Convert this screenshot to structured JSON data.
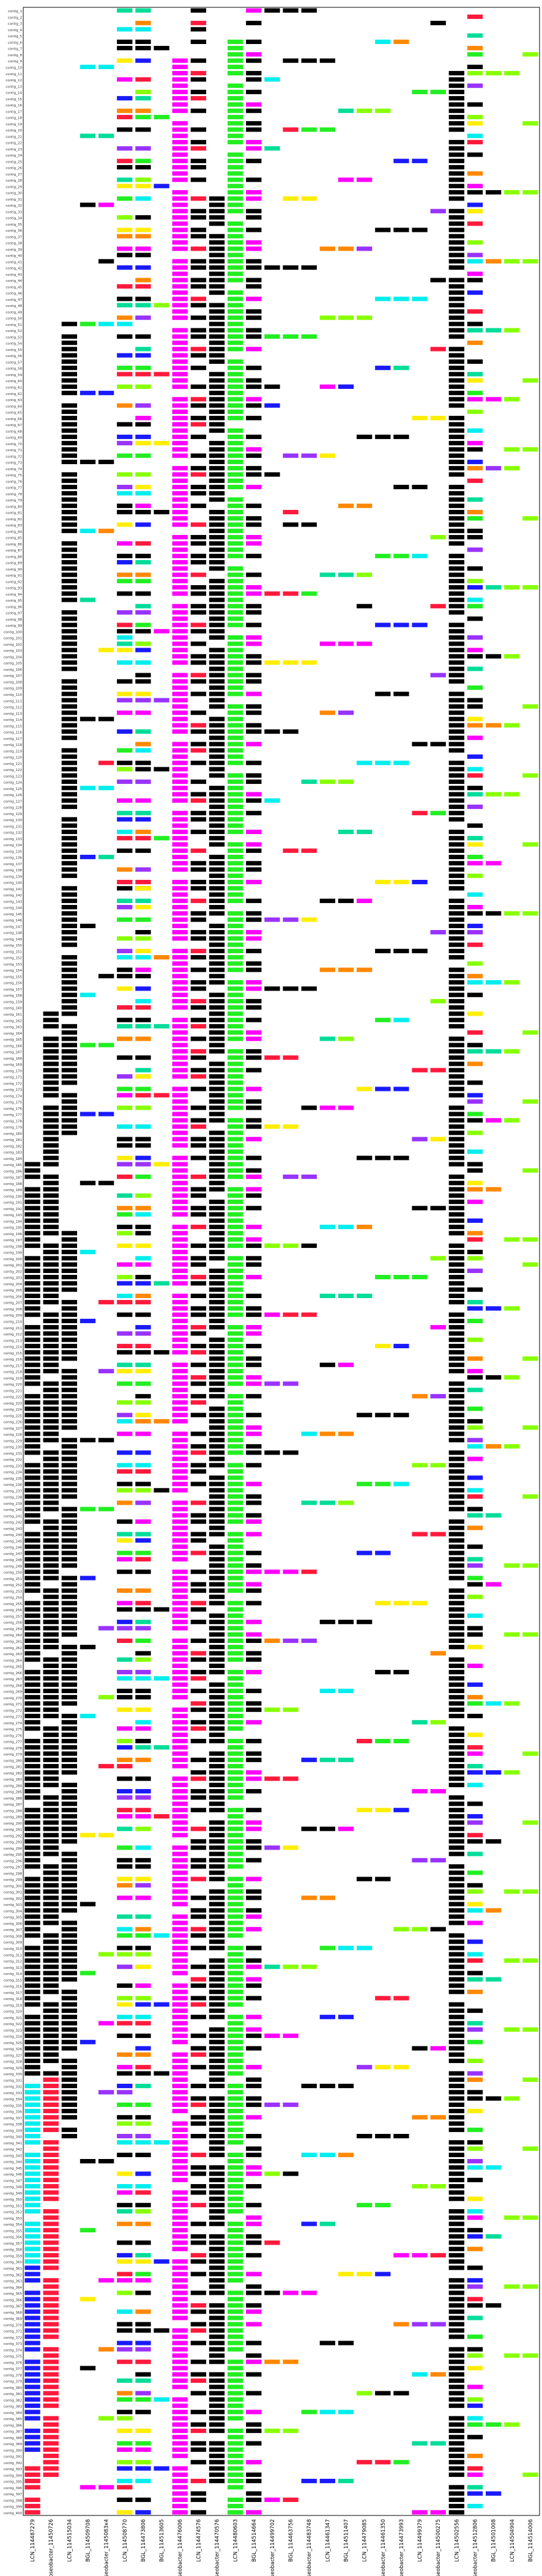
{
  "chart_data": {
    "type": "heatmap",
    "title": "",
    "xlabel": "",
    "ylabel": "",
    "row_count": 400,
    "row_label_prefix": "contig_",
    "columns": [
      "LCN_114487279",
      "roseobacter_11450726",
      "LCN_114515034",
      "BGL_114509708",
      "roseobacter_1145083x4",
      "LCN_114508770",
      "BGL_114473806",
      "BGL_114513605",
      "roseobacter_114476006",
      "LCN_114474576",
      "roseobacter_114470576",
      "LCN_114480603",
      "BGL_114514664",
      "roseobacter_114499702",
      "BGL_114463756",
      "roseobacter_114483748",
      "LCN_114461347",
      "BGL_114511407",
      "LCN_114479085",
      "roseobacter_114461350",
      "roseobacter_114473993",
      "LCN_114499379",
      "roseobacter_114500275",
      "LCN_114502556",
      "roseobacter_114512806",
      "BGL_114501008",
      "LCN_114504904",
      "BGL_114514006"
    ],
    "colors": {
      "black": "#000000",
      "green": "#22ee22",
      "magenta": "#ff00ff",
      "red": "#ff1a3c",
      "blue": "#1a1aff",
      "cyan": "#00eeee",
      "yellow": "#ffee00",
      "orange": "#ff8800",
      "purple": "#9933ff",
      "lime": "#88ff00",
      "teal": "#00dd99"
    },
    "segments": [
      {
        "col": 0,
        "start": 184,
        "end": 330,
        "color": "black"
      },
      {
        "col": 0,
        "start": 330,
        "end": 360,
        "color": "cyan"
      },
      {
        "col": 0,
        "start": 360,
        "end": 390,
        "color": "blue"
      },
      {
        "col": 0,
        "start": 392,
        "end": 400,
        "color": "red"
      },
      {
        "col": 1,
        "start": 160,
        "end": 330,
        "color": "black"
      },
      {
        "col": 1,
        "start": 330,
        "end": 395,
        "color": "red"
      },
      {
        "col": 2,
        "start": 50,
        "end": 180,
        "color": "black"
      },
      {
        "col": 2,
        "start": 195,
        "end": 340,
        "color": "black"
      },
      {
        "col": 8,
        "start": 8,
        "end": 400,
        "color": "magenta"
      },
      {
        "col": 11,
        "start": 5,
        "end": 400,
        "color": "green"
      },
      {
        "col": 10,
        "start": 30,
        "end": 395,
        "color": "black"
      },
      {
        "col": 23,
        "start": 10,
        "end": 400,
        "color": "black"
      }
    ],
    "cells": [
      {
        "col": 4,
        "row": 40,
        "color": "black"
      },
      {
        "col": 4,
        "row": 120,
        "color": "red"
      },
      {
        "col": 5,
        "row": 100,
        "color": "cyan"
      },
      {
        "col": 6,
        "row": 140,
        "color": "yellow"
      },
      {
        "col": 12,
        "row": 15,
        "color": "magenta"
      },
      {
        "col": 13,
        "row": 60,
        "color": "black"
      },
      {
        "col": 14,
        "row": 80,
        "color": "red"
      },
      {
        "col": 17,
        "row": 60,
        "color": "blue"
      },
      {
        "col": 18,
        "row": 95,
        "color": "black"
      },
      {
        "col": 21,
        "row": 150,
        "color": "black"
      },
      {
        "col": 26,
        "row": 70,
        "color": "lime"
      },
      {
        "col": 27,
        "row": 200,
        "color": "lime"
      }
    ]
  }
}
